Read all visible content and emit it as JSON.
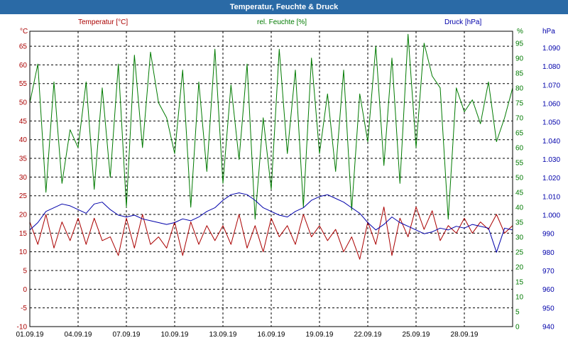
{
  "window": {
    "title": "Temperatur, Feuchte & Druck"
  },
  "chart_data": {
    "type": "line",
    "title": "Temperatur, Feuchte & Druck",
    "colors": {
      "temperature": "#aa0000",
      "humidity": "#007a00",
      "pressure": "#0000aa"
    },
    "grid": true,
    "x_labels": [
      "01.09.19",
      "04.09.19",
      "07.09.19",
      "10.09.19",
      "13.09.19",
      "16.09.19",
      "19.09.19",
      "22.09.19",
      "25.09.19",
      "28.09.19"
    ],
    "axes": {
      "left": {
        "unit": "°C",
        "ticks": [
          "-10",
          "-5",
          "0",
          "5",
          "10",
          "15",
          "20",
          "25",
          "30",
          "35",
          "40",
          "45",
          "50",
          "55",
          "60",
          "65"
        ],
        "range": [
          -10,
          69
        ]
      },
      "middle": {
        "unit": "%",
        "ticks": [
          "0",
          "5",
          "10",
          "15",
          "20",
          "25",
          "30",
          "35",
          "40",
          "45",
          "50",
          "55",
          "60",
          "65",
          "70",
          "75",
          "80",
          "85",
          "90",
          "95"
        ],
        "range": [
          0,
          99
        ]
      },
      "right": {
        "unit": "hPa",
        "ticks": [
          "940",
          "950",
          "960",
          "970",
          "980",
          "990",
          "1.000",
          "1.010",
          "1.020",
          "1.030",
          "1.040",
          "1.050",
          "1.060",
          "1.070",
          "1.080",
          "1.090"
        ],
        "range": [
          940,
          1099
        ]
      }
    },
    "series": [
      {
        "name": "Temperatur [°C]",
        "axis": "left",
        "color": "#aa0000",
        "x": [
          1.0,
          1.5,
          2.0,
          2.5,
          3.0,
          3.5,
          4.0,
          4.5,
          5.0,
          5.5,
          6.0,
          6.5,
          7.0,
          7.5,
          8.0,
          8.5,
          9.0,
          9.5,
          10.0,
          10.5,
          11.0,
          11.5,
          12.0,
          12.5,
          13.0,
          13.5,
          14.0,
          14.5,
          15.0,
          15.5,
          16.0,
          16.5,
          17.0,
          17.5,
          18.0,
          18.5,
          19.0,
          19.5,
          20.0,
          20.5,
          21.0,
          21.5,
          22.0,
          22.5,
          23.0,
          23.5,
          24.0,
          24.5,
          25.0,
          25.5,
          26.0,
          26.5,
          27.0,
          27.5,
          28.0,
          28.5,
          29.0,
          29.5,
          30.0,
          30.5,
          31.0
        ],
        "values": [
          18,
          12,
          20,
          11,
          18,
          13,
          19,
          12,
          19,
          13,
          14,
          9,
          19,
          11,
          20,
          12,
          14,
          11,
          18,
          9,
          18,
          12,
          17,
          13,
          17,
          12,
          20,
          11,
          17,
          10,
          19,
          14,
          17,
          12,
          20,
          14,
          17,
          13,
          16,
          10,
          14,
          8,
          18,
          12,
          22,
          9,
          19,
          14,
          22,
          16,
          21,
          13,
          17,
          15,
          19,
          15,
          18,
          16,
          20,
          15,
          17
        ]
      },
      {
        "name": "rel. Feuchte [%]",
        "axis": "middle",
        "color": "#007a00",
        "x": [
          1.0,
          1.5,
          2.0,
          2.5,
          3.0,
          3.5,
          4.0,
          4.5,
          5.0,
          5.5,
          6.0,
          6.5,
          7.0,
          7.5,
          8.0,
          8.5,
          9.0,
          9.5,
          10.0,
          10.5,
          11.0,
          11.5,
          12.0,
          12.5,
          13.0,
          13.5,
          14.0,
          14.5,
          15.0,
          15.5,
          16.0,
          16.5,
          17.0,
          17.5,
          18.0,
          18.5,
          19.0,
          19.5,
          20.0,
          20.5,
          21.0,
          21.5,
          22.0,
          22.5,
          23.0,
          23.5,
          24.0,
          24.5,
          25.0,
          25.5,
          26.0,
          26.5,
          27.0,
          27.5,
          28.0,
          28.5,
          29.0,
          29.5,
          30.0,
          30.5,
          31.0
        ],
        "values": [
          75,
          88,
          45,
          82,
          48,
          66,
          60,
          82,
          46,
          80,
          50,
          88,
          40,
          91,
          60,
          92,
          75,
          70,
          58,
          86,
          40,
          82,
          52,
          93,
          48,
          81,
          56,
          88,
          36,
          70,
          46,
          93,
          58,
          86,
          40,
          90,
          58,
          78,
          52,
          86,
          39,
          78,
          62,
          94,
          54,
          90,
          48,
          98,
          60,
          95,
          84,
          80,
          36,
          80,
          72,
          76,
          68,
          82,
          62,
          70,
          80
        ]
      },
      {
        "name": "Druck [hPa]",
        "axis": "right",
        "color": "#0000aa",
        "x": [
          1.0,
          1.5,
          2.0,
          2.5,
          3.0,
          3.5,
          4.0,
          4.5,
          5.0,
          5.5,
          6.0,
          6.5,
          7.0,
          7.5,
          8.0,
          8.5,
          9.0,
          9.5,
          10.0,
          10.5,
          11.0,
          11.5,
          12.0,
          12.5,
          13.0,
          13.5,
          14.0,
          14.5,
          15.0,
          15.5,
          16.0,
          16.5,
          17.0,
          17.5,
          18.0,
          18.5,
          19.0,
          19.5,
          20.0,
          20.5,
          21.0,
          21.5,
          22.0,
          22.5,
          23.0,
          23.5,
          24.0,
          24.5,
          25.0,
          25.5,
          26.0,
          26.5,
          27.0,
          27.5,
          28.0,
          28.5,
          29.0,
          29.5,
          30.0,
          30.5,
          31.0
        ],
        "values": [
          992,
          996,
          1002,
          1004,
          1006,
          1005,
          1003,
          1001,
          1006,
          1007,
          1003,
          1000,
          999,
          1000,
          998,
          997,
          996,
          995,
          996,
          998,
          997,
          999,
          1002,
          1004,
          1008,
          1011,
          1012,
          1011,
          1008,
          1004,
          1002,
          1000,
          999,
          1002,
          1004,
          1008,
          1010,
          1011,
          1009,
          1007,
          1004,
          1001,
          996,
          992,
          995,
          999,
          996,
          994,
          992,
          990,
          991,
          993,
          992,
          994,
          993,
          995,
          994,
          993,
          980,
          993,
          992
        ]
      }
    ]
  }
}
